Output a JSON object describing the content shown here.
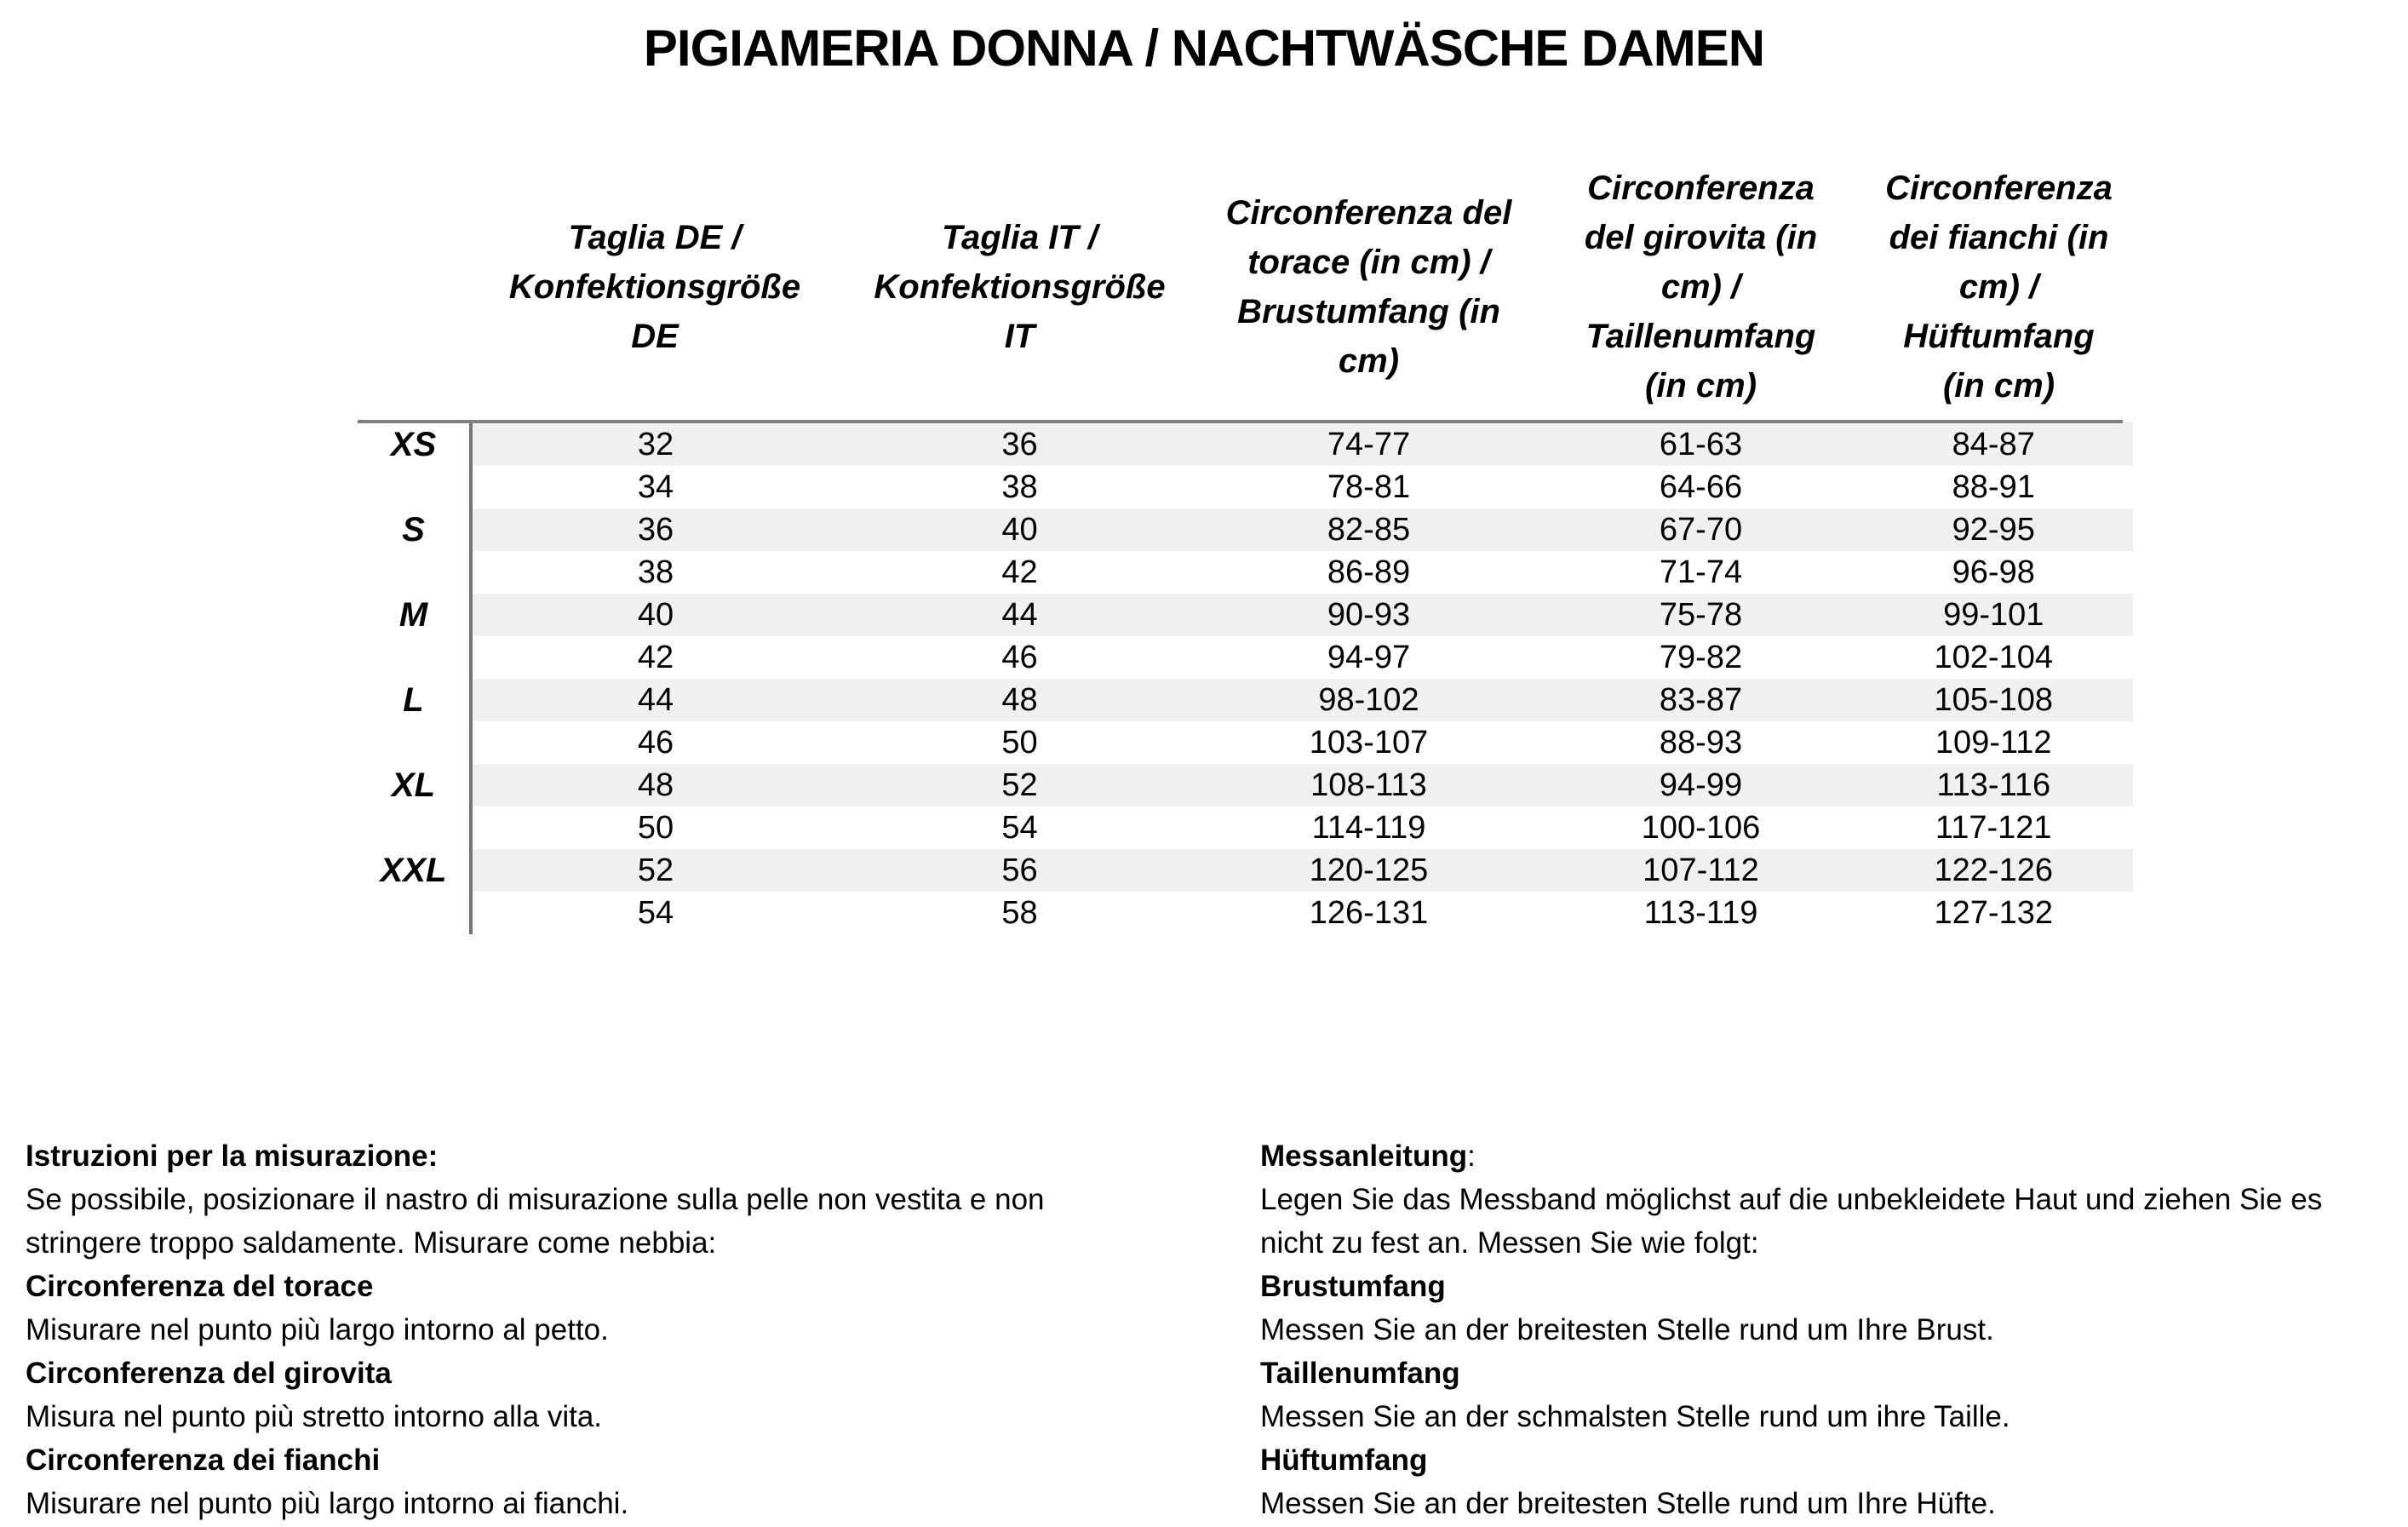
{
  "title": "PIGIAMERIA DONNA / NACHTWÄSCHE DAMEN",
  "colors": {
    "row_stripe": "#f0f0f0",
    "header_rule": "#7f7f7f",
    "column_divider": "#767676",
    "text": "#000000",
    "background": "#ffffff"
  },
  "table": {
    "headers": [
      "",
      "Taglia DE /\nKonfektionsgröße\nDE",
      "Taglia IT /\nKonfektionsgröße\nIT",
      "Circonferenza del\ntorace (in cm) /\nBrustumfang (in\ncm)",
      "Circonferenza\ndel girovita (in\ncm) /\nTaillenumfang\n(in cm)",
      "Circonferenza\ndei fianchi (in\ncm) /\nHüftumfang\n(in cm)"
    ],
    "rows": [
      {
        "size": "XS",
        "de": "32",
        "it": "36",
        "chest": "74-77",
        "waist": "61-63",
        "hip": "84-87"
      },
      {
        "size": "",
        "de": "34",
        "it": "38",
        "chest": "78-81",
        "waist": "64-66",
        "hip": "88-91"
      },
      {
        "size": "S",
        "de": "36",
        "it": "40",
        "chest": "82-85",
        "waist": "67-70",
        "hip": "92-95"
      },
      {
        "size": "",
        "de": "38",
        "it": "42",
        "chest": "86-89",
        "waist": "71-74",
        "hip": "96-98"
      },
      {
        "size": "M",
        "de": "40",
        "it": "44",
        "chest": "90-93",
        "waist": "75-78",
        "hip": "99-101"
      },
      {
        "size": "",
        "de": "42",
        "it": "46",
        "chest": "94-97",
        "waist": "79-82",
        "hip": "102-104"
      },
      {
        "size": "L",
        "de": "44",
        "it": "48",
        "chest": "98-102",
        "waist": "83-87",
        "hip": "105-108"
      },
      {
        "size": "",
        "de": "46",
        "it": "50",
        "chest": "103-107",
        "waist": "88-93",
        "hip": "109-112"
      },
      {
        "size": "XL",
        "de": "48",
        "it": "52",
        "chest": "108-113",
        "waist": "94-99",
        "hip": "113-116"
      },
      {
        "size": "",
        "de": "50",
        "it": "54",
        "chest": "114-119",
        "waist": "100-106",
        "hip": "117-121"
      },
      {
        "size": "XXL",
        "de": "52",
        "it": "56",
        "chest": "120-125",
        "waist": "107-112",
        "hip": "122-126"
      },
      {
        "size": "",
        "de": "54",
        "it": "58",
        "chest": "126-131",
        "waist": "113-119",
        "hip": "127-132"
      }
    ]
  },
  "instructions": {
    "italian": {
      "lines": [
        [
          {
            "t": "Istruzioni per la misurazione:",
            "b": true
          }
        ],
        [
          {
            "t": "Se possibile, posizionare il nastro di misurazione sulla pelle non vestita e non",
            "b": false
          }
        ],
        [
          {
            "t": "stringere troppo saldamente. Misurare come nebbia:",
            "b": false
          }
        ],
        [
          {
            "t": "Circonferenza del torace",
            "b": true
          }
        ],
        [
          {
            "t": "Misurare nel punto più largo intorno al petto.",
            "b": false
          }
        ],
        [
          {
            "t": "Circonferenza del girovita",
            "b": true
          }
        ],
        [
          {
            "t": "Misura nel punto più stretto intorno alla vita.",
            "b": false
          }
        ],
        [
          {
            "t": "Circonferenza dei fianchi",
            "b": true
          }
        ],
        [
          {
            "t": "Misurare nel punto più largo intorno ai fianchi.",
            "b": false
          }
        ]
      ]
    },
    "german": {
      "lines": [
        [
          {
            "t": "Messanleitung",
            "b": true
          },
          {
            "t": ":",
            "b": false
          }
        ],
        [
          {
            "t": "Legen Sie das Messband möglichst auf die unbekleidete Haut und ziehen Sie es",
            "b": false
          }
        ],
        [
          {
            "t": "nicht zu fest an. Messen Sie wie folgt:",
            "b": false
          }
        ],
        [
          {
            "t": "Brustumfang",
            "b": true
          }
        ],
        [
          {
            "t": "Messen Sie an der breitesten Stelle rund um Ihre Brust.",
            "b": false
          }
        ],
        [
          {
            "t": "Taillenumfang",
            "b": true
          }
        ],
        [
          {
            "t": "Messen Sie an der schmalsten Stelle rund um ihre Taille.",
            "b": false
          }
        ],
        [
          {
            "t": "Hüftumfang",
            "b": true
          }
        ],
        [
          {
            "t": "Messen Sie an der breitesten Stelle rund um Ihre Hüfte.",
            "b": false
          }
        ]
      ]
    }
  }
}
